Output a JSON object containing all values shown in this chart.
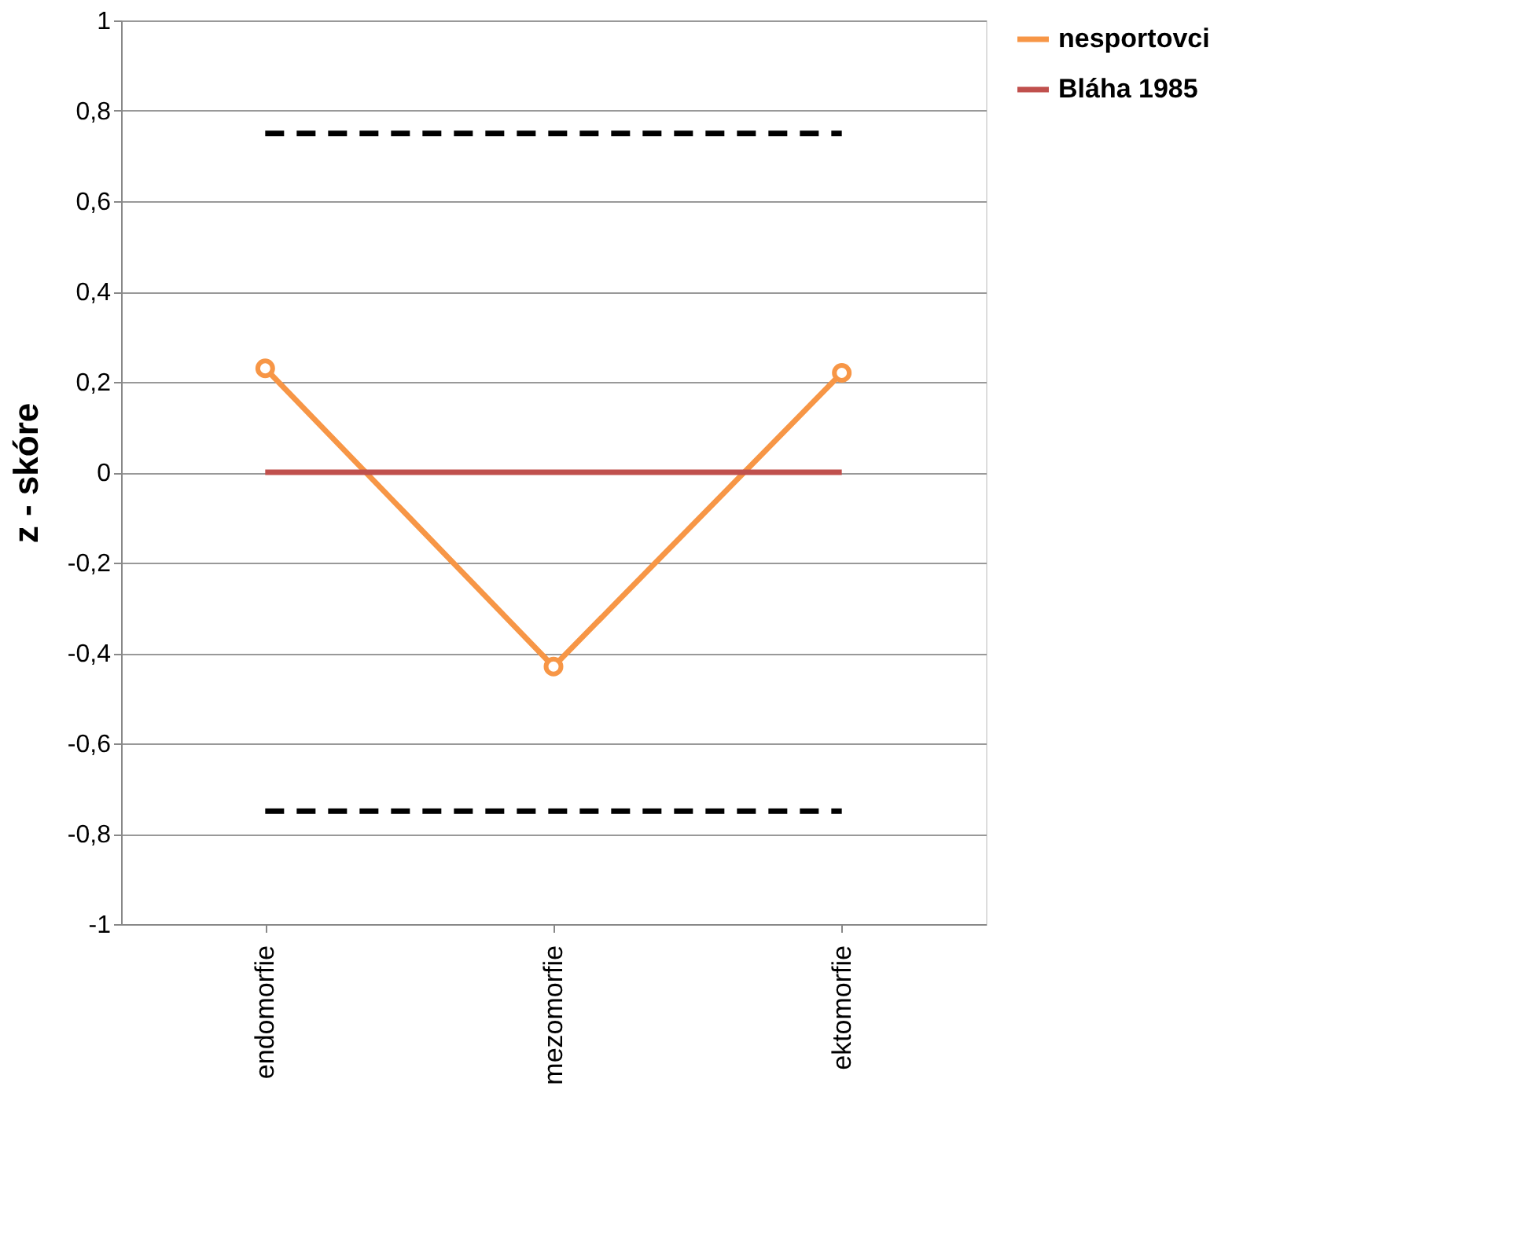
{
  "chart_data": {
    "type": "line",
    "ylabel": "z - skóre",
    "categories": [
      "endomorfie",
      "mezomorfie",
      "ektomorfie"
    ],
    "series": [
      {
        "name": "nesportovci",
        "color": "#f79646",
        "values": [
          0.23,
          -0.43,
          0.22
        ],
        "marker": "circle",
        "line_style": "solid"
      },
      {
        "name": "Bláha 1985",
        "color": "#c0504d",
        "values": [
          0,
          0,
          0
        ],
        "marker": "none",
        "line_style": "solid"
      },
      {
        "color": "#000000",
        "values": [
          0.75,
          0.75,
          0.75
        ],
        "marker": "none",
        "line_style": "dashed"
      },
      {
        "color": "#000000",
        "values": [
          -0.75,
          -0.75,
          -0.75
        ],
        "marker": "none",
        "line_style": "dashed"
      }
    ],
    "ylim": [
      -1,
      1
    ],
    "yticks": [
      {
        "value": -1,
        "label": "-1"
      },
      {
        "value": -0.8,
        "label": "-0,8"
      },
      {
        "value": -0.6,
        "label": "-0,6"
      },
      {
        "value": -0.4,
        "label": "-0,4"
      },
      {
        "value": -0.2,
        "label": "-0,2"
      },
      {
        "value": 0,
        "label": "0"
      },
      {
        "value": 0.2,
        "label": "0,2"
      },
      {
        "value": 0.4,
        "label": "0,4"
      },
      {
        "value": 0.6,
        "label": "0,6"
      },
      {
        "value": 0.8,
        "label": "0,8"
      },
      {
        "value": 1,
        "label": "1"
      }
    ],
    "grid": "y",
    "legend": "right"
  }
}
